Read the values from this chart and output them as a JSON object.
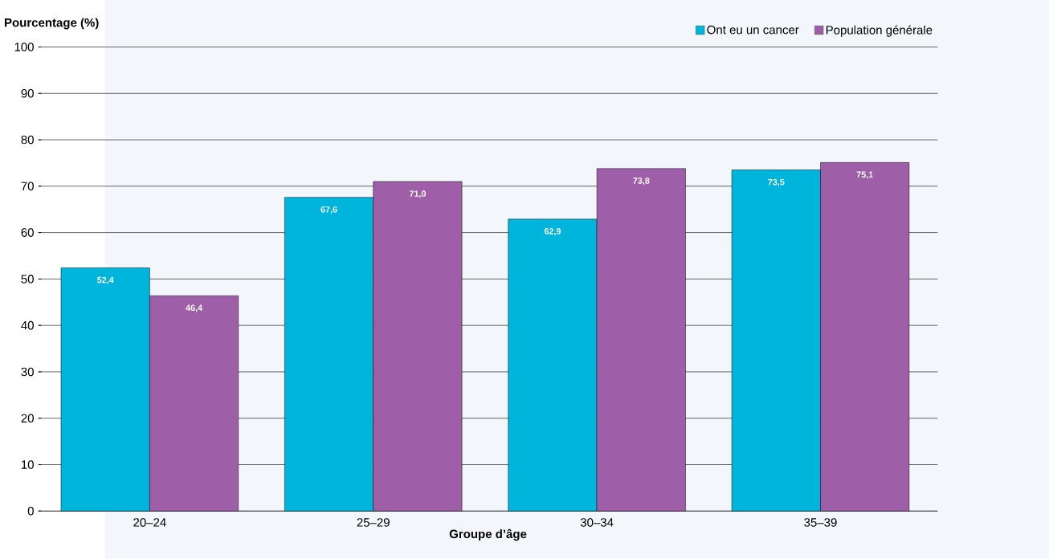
{
  "chart_data": {
    "type": "bar",
    "xlabel": "Groupe d’âge",
    "ylabel": "Pourcentage (%)",
    "categories": [
      "20–24",
      "25–29",
      "30–34",
      "35–39"
    ],
    "series": [
      {
        "name": "Ont eu un cancer",
        "color": "#00b5dc",
        "values": [
          52.4,
          67.6,
          62.9,
          73.5
        ],
        "value_labels": [
          "52,4",
          "67,6",
          "62,9",
          "73,5"
        ]
      },
      {
        "name": "Population générale",
        "color": "#9e5fa8",
        "values": [
          46.4,
          71.0,
          73.8,
          75.1
        ],
        "value_labels": [
          "46,4",
          "71,0",
          "73,8",
          "75,1"
        ]
      }
    ],
    "ylim": [
      0,
      100
    ],
    "yticks": [
      0,
      10,
      20,
      30,
      40,
      50,
      60,
      70,
      80,
      90,
      100
    ],
    "grid": "y",
    "legend": "top right"
  }
}
